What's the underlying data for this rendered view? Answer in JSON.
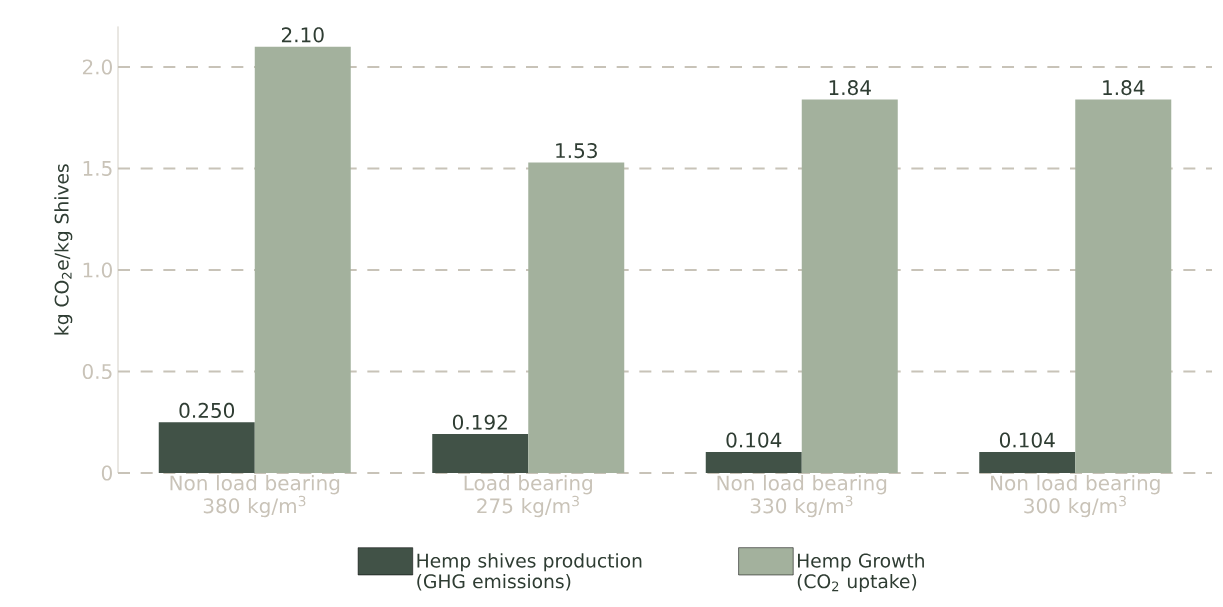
{
  "chart_data": {
    "type": "bar",
    "ylabel": "kg CO$_{2}$e/kg Shives",
    "categories": [
      "Non load bearing 380 kg/m$^{3}$",
      "Load bearing 275 kg/m$^{3}$",
      "Non load bearing 330 kg/m$^{3}$",
      "Non load bearing 300 kg/m$^{3}$"
    ],
    "series": [
      {
        "name": "Hemp shives production (GHG emissions)",
        "color": "#415247",
        "values": [
          0.25,
          0.192,
          0.104,
          0.104
        ],
        "value_labels": [
          "0.250",
          "0.192",
          "0.104",
          "0.104"
        ]
      },
      {
        "name": "Hemp Growth (CO$_{2}$ uptake)",
        "color": "#a3b19d",
        "values": [
          2.1,
          1.53,
          1.84,
          1.84
        ],
        "value_labels": [
          "2.10",
          "1.53",
          "1.84",
          "1.84"
        ]
      }
    ],
    "ylim": [
      0,
      2.2
    ],
    "yticks": [
      {
        "value": 0,
        "label": "0"
      },
      0.5,
      {
        "value": 1,
        "label": "1.0"
      },
      1.5,
      {
        "value": 2,
        "label": "2.0"
      }
    ],
    "grid": "y",
    "legend": "bottom"
  }
}
